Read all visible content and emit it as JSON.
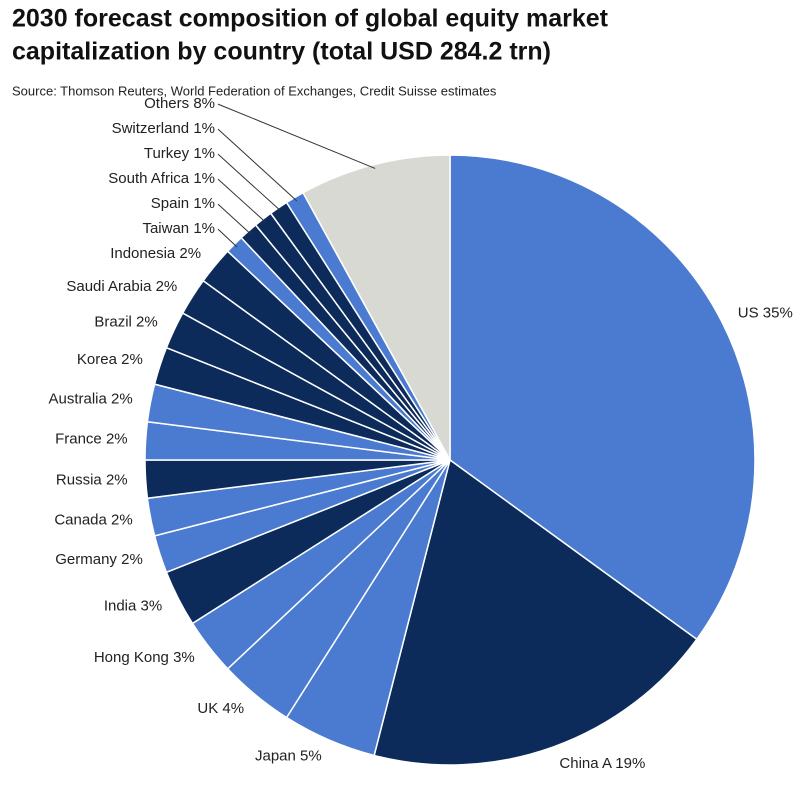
{
  "chart_data": {
    "type": "pie",
    "title": [
      "2030 forecast composition of global equity market",
      "capitalization by country (total USD 284.2 trn)"
    ],
    "subtitle": "Source: Thomson Reuters, World Federation of Exchanges, Credit Suisse estimates",
    "categories": [
      "US",
      "China A",
      "Japan",
      "UK",
      "Hong Kong",
      "India",
      "Germany",
      "Canada",
      "Russia",
      "France",
      "Australia",
      "Korea",
      "Brazil",
      "Saudi Arabia",
      "Indonesia",
      "Taiwan",
      "Spain",
      "South Africa",
      "Turkey",
      "Switzerland",
      "Others"
    ],
    "values": [
      35,
      19,
      5,
      4,
      3,
      3,
      2,
      2,
      2,
      2,
      2,
      2,
      2,
      2,
      2,
      1,
      1,
      1,
      1,
      1,
      8
    ],
    "value_labels": [
      "35%",
      "19%",
      "5%",
      "4%",
      "3%",
      "3%",
      "2%",
      "2%",
      "2%",
      "2%",
      "2%",
      "2%",
      "2%",
      "2%",
      "2%",
      "1%",
      "1%",
      "1%",
      "1%",
      "1%",
      "8%"
    ],
    "colors": [
      "#4a7bd0",
      "#0c2b5a",
      "#4a7bd0",
      "#4a7bd0",
      "#4a7bd0",
      "#0c2b5a",
      "#4a7bd0",
      "#4a7bd0",
      "#0c2b5a",
      "#4a7bd0",
      "#4a7bd0",
      "#0c2b5a",
      "#0c2b5a",
      "#0c2b5a",
      "#0c2b5a",
      "#4a7bd0",
      "#0c2b5a",
      "#0c2b5a",
      "#0c2b5a",
      "#4a7bd0",
      "#d9d9d3"
    ]
  }
}
